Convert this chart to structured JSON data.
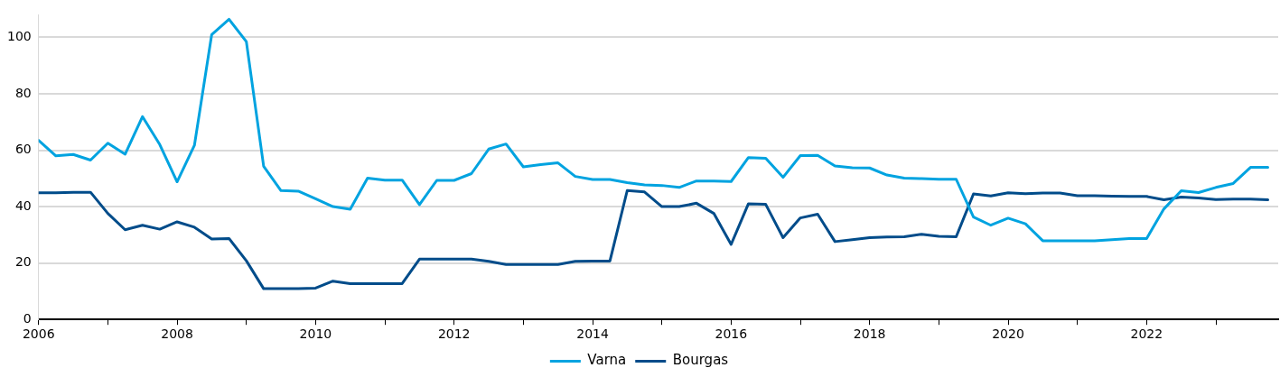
{
  "chart_data": {
    "type": "line",
    "x": [
      2006,
      2006.25,
      2006.5,
      2006.75,
      2007,
      2007.25,
      2007.5,
      2007.75,
      2008,
      2008.25,
      2008.5,
      2008.75,
      2009,
      2009.25,
      2009.5,
      2009.75,
      2010,
      2010.25,
      2010.5,
      2010.75,
      2011,
      2011.25,
      2011.5,
      2011.75,
      2012,
      2012.25,
      2012.5,
      2012.75,
      2013,
      2013.25,
      2013.5,
      2013.75,
      2014,
      2014.25,
      2014.5,
      2014.75,
      2015,
      2015.25,
      2015.5,
      2015.75,
      2016,
      2016.25,
      2016.5,
      2016.75,
      2017,
      2017.25,
      2017.5,
      2017.75,
      2018,
      2018.25,
      2018.5,
      2018.75,
      2019,
      2019.25,
      2019.5,
      2019.75,
      2020,
      2020.25,
      2020.5,
      2020.75,
      2021,
      2021.25,
      2021.5,
      2021.75,
      2022,
      2022.25,
      2022.5,
      2022.75,
      2023,
      2023.25,
      2023.5,
      2023.75
    ],
    "series": [
      {
        "name": "Varna",
        "color": "#00a3e0",
        "values": [
          63.5,
          58,
          58.5,
          56.5,
          62.5,
          58.6,
          71.9,
          62,
          48.8,
          61.7,
          101,
          106.4,
          98.5,
          54.3,
          45.7,
          45.5,
          42.8,
          40,
          39.1,
          50.1,
          49.4,
          49.4,
          40.7,
          49.3,
          49.3,
          51.7,
          60.4,
          62.2,
          54.1,
          54.9,
          55.5,
          50.7,
          49.6,
          49.6,
          48.5,
          47.7,
          47.5,
          46.8,
          49.1,
          49.1,
          48.9,
          57.4,
          57.1,
          50.4,
          58.1,
          58.2,
          54.4,
          53.8,
          53.7,
          51.2,
          50.1,
          49.9,
          49.7,
          49.7,
          36.3,
          33.4,
          35.9,
          33.9,
          27.9,
          27.9,
          27.9,
          27.9,
          28.3,
          28.7,
          28.7,
          39.2,
          45.6,
          45,
          46.8,
          48.2,
          53.9,
          53.9
        ]
      },
      {
        "name": "Bourgas",
        "color": "#004c8a",
        "values": [
          44.9,
          44.9,
          45.1,
          45.1,
          37.6,
          31.8,
          33.4,
          32,
          34.6,
          32.7,
          28.5,
          28.7,
          20.8,
          10.9,
          10.9,
          10.9,
          11.1,
          13.6,
          12.7,
          12.7,
          12.7,
          12.7,
          21.4,
          21.4,
          21.4,
          21.4,
          20.6,
          19.5,
          19.5,
          19.5,
          19.5,
          20.6,
          20.7,
          20.7,
          45.7,
          45.2,
          40,
          40,
          41.2,
          37.6,
          26.6,
          41,
          40.8,
          29,
          36,
          37.3,
          27.6,
          28.3,
          29,
          29.2,
          29.3,
          30.2,
          29.5,
          29.3,
          44.5,
          43.8,
          44.9,
          44.6,
          44.8,
          44.8,
          43.9,
          43.9,
          43.7,
          43.6,
          43.6,
          42.4,
          43.4,
          43.1,
          42.5,
          42.7,
          42.7,
          42.4
        ]
      }
    ],
    "xlim": [
      2006,
      2023.9
    ],
    "xticks": [
      2006,
      {
        "value": 2007,
        "label": null
      },
      2008,
      {
        "value": 2009,
        "label": null
      },
      2010,
      {
        "value": 2011,
        "label": null
      },
      2012,
      {
        "value": 2013,
        "label": null
      },
      2014,
      {
        "value": 2015,
        "label": null
      },
      2016,
      {
        "value": 2017,
        "label": null
      },
      2018,
      {
        "value": 2019,
        "label": null
      },
      2020,
      {
        "value": 2021,
        "label": null
      },
      2022,
      {
        "value": 2023,
        "label": null
      }
    ],
    "ylim": [
      0,
      108
    ],
    "yticks": [
      0,
      20,
      40,
      60,
      80,
      100
    ],
    "grid": "y",
    "legend": "bottom",
    "marker": "none",
    "line_style": "solid"
  }
}
